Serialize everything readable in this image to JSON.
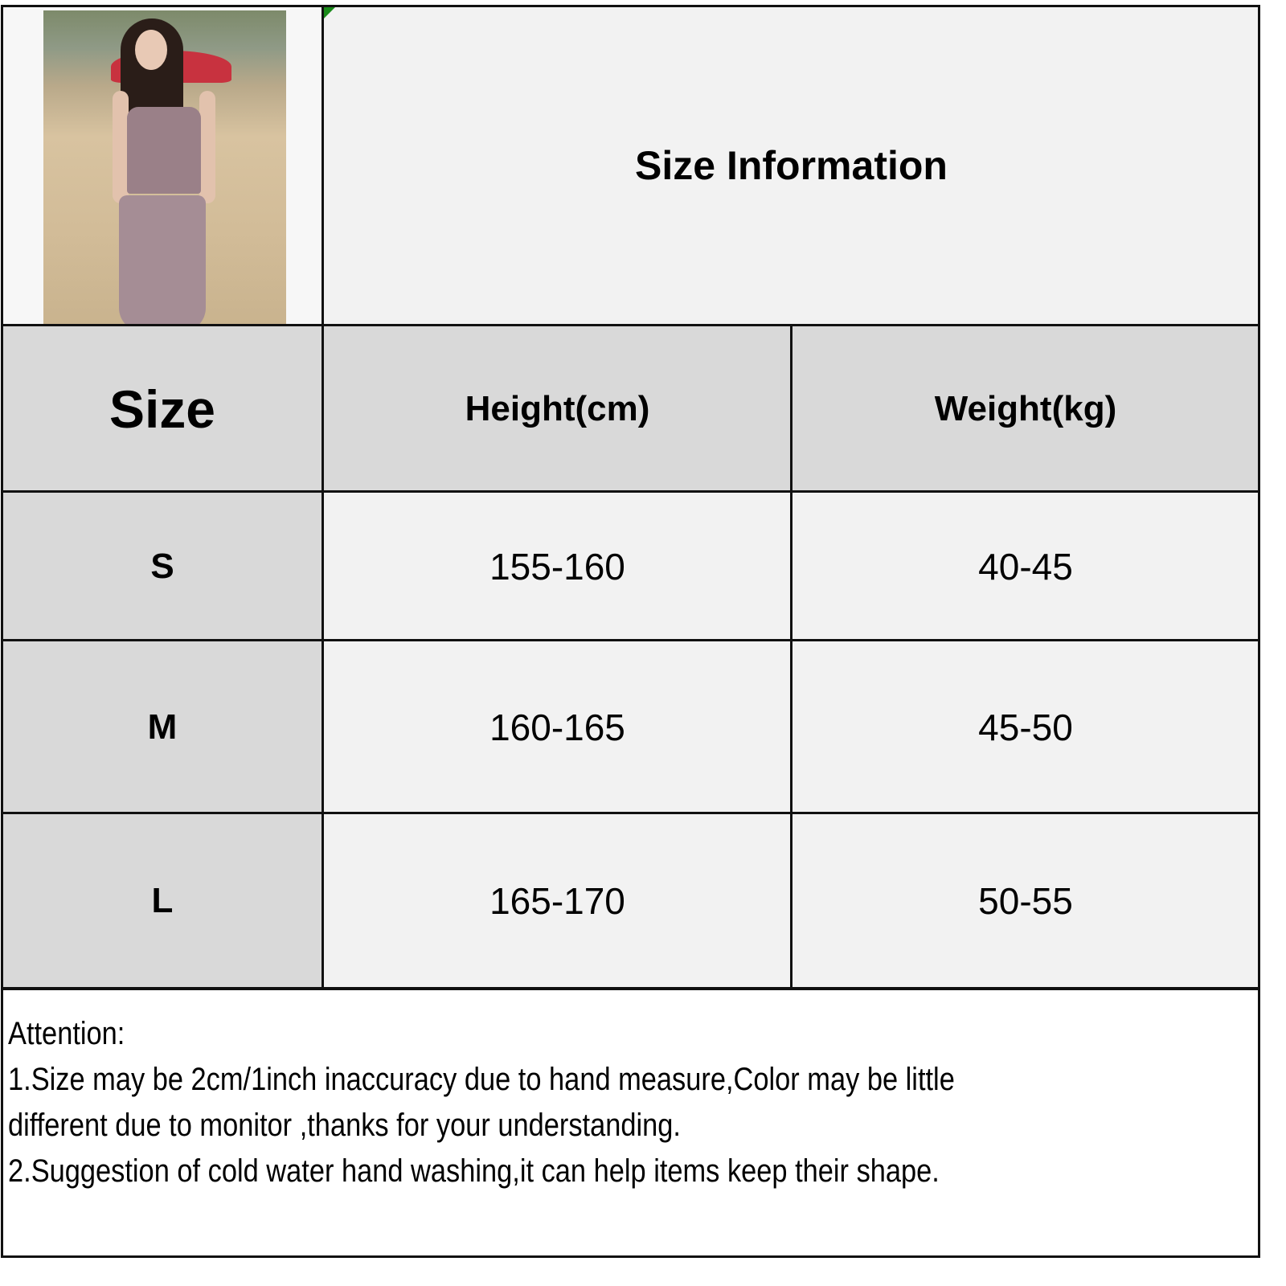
{
  "title": "Size Information",
  "table": {
    "headers": [
      "Size",
      "Height(cm)",
      "Weight(kg)"
    ],
    "rows": [
      {
        "size": "S",
        "height": "155-160",
        "weight": "40-45"
      },
      {
        "size": "M",
        "height": "160-165",
        "weight": "45-50"
      },
      {
        "size": "L",
        "height": "165-170",
        "weight": "50-55"
      }
    ]
  },
  "attention": {
    "heading": "Attention:",
    "lines": [
      "1.Size may be 2cm/1inch inaccuracy due to hand measure,Color may be little",
      "different due to monitor ,thanks for your understanding.",
      "2.Suggestion of cold water hand washing,it can help items keep their shape."
    ]
  },
  "colors": {
    "header_fill": "#d9d9d9",
    "cell_fill": "#f2f2f2",
    "border": "#111111",
    "marker": "#1a8a1a"
  }
}
